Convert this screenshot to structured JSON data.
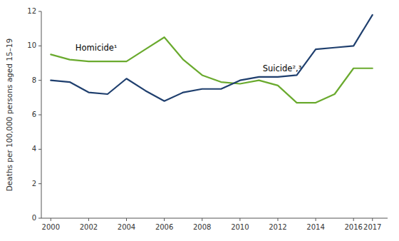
{
  "chart_data": {
    "type": "line",
    "ylabel": "Deaths per 100,000 persons aged 15–19",
    "x": [
      2000,
      2001,
      2002,
      2003,
      2004,
      2005,
      2006,
      2007,
      2008,
      2009,
      2010,
      2011,
      2012,
      2013,
      2014,
      2015,
      2016,
      2017
    ],
    "series": [
      {
        "color": "#6aaa2e",
        "values": [
          9.5,
          9.2,
          9.1,
          9.1,
          9.1,
          9.8,
          10.5,
          9.2,
          8.3,
          7.9,
          7.8,
          8.0,
          7.7,
          6.7,
          6.7,
          7.2,
          8.7,
          8.7
        ]
      },
      {
        "color": "#1f3f6e",
        "values": [
          8.0,
          7.9,
          7.3,
          7.2,
          8.1,
          7.4,
          6.8,
          7.3,
          7.5,
          7.5,
          8.0,
          8.2,
          8.2,
          8.3,
          9.8,
          9.9,
          10.0,
          11.8
        ]
      }
    ],
    "annotations": [
      {
        "text": "Homicide¹",
        "x": 2001.3,
        "y": 9.65
      },
      {
        "text": "Suicide²,³",
        "x": 2011.2,
        "y": 8.45
      }
    ],
    "xlim": [
      1999.5,
      2017.8
    ],
    "xticks": [
      2000,
      2002,
      2004,
      2006,
      2008,
      2010,
      2012,
      2014,
      2016,
      2017
    ],
    "ylim": [
      0,
      12
    ],
    "yticks": [
      0,
      2,
      4,
      6,
      8,
      10,
      12
    ],
    "grid": false
  }
}
